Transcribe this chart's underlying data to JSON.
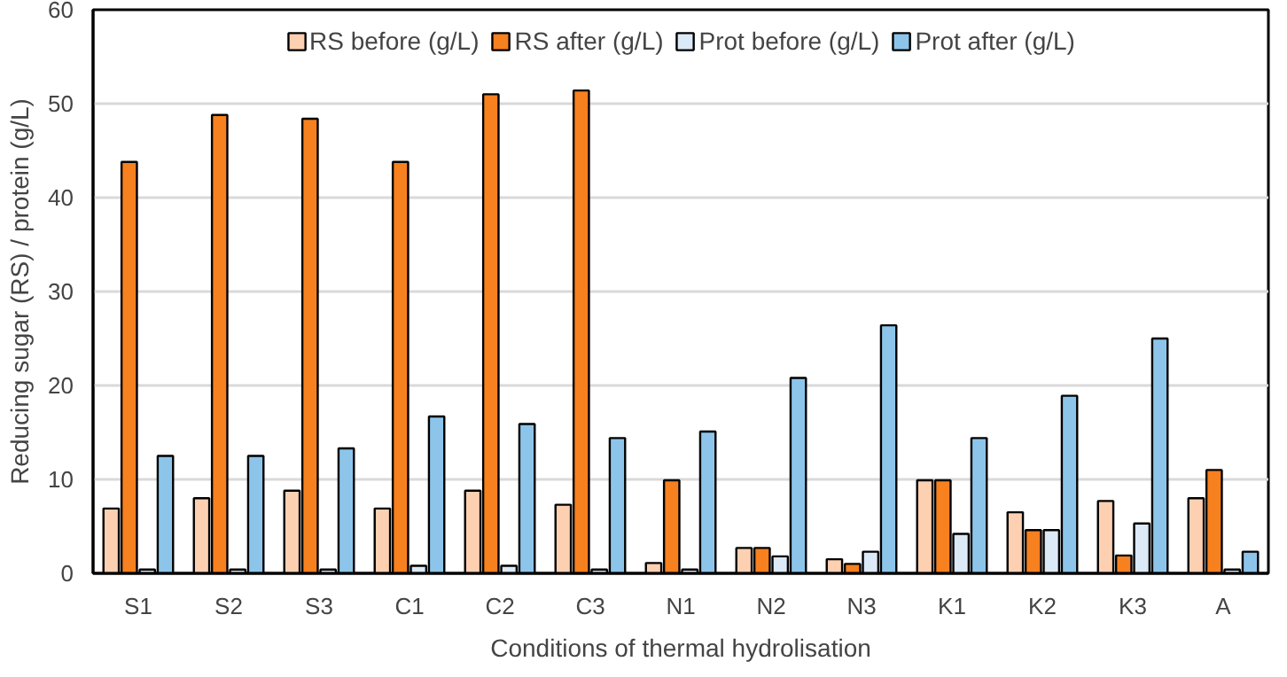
{
  "chart_data": {
    "type": "bar",
    "xlabel": "Conditions of thermal hydrolisation",
    "ylabel": "Reducing sugar (RS) / protein (g/L)",
    "categories": [
      "S1",
      "S2",
      "S3",
      "C1",
      "C2",
      "C3",
      "N1",
      "N2",
      "N3",
      "K1",
      "K2",
      "K3",
      "A"
    ],
    "series": [
      {
        "name": "RS before (g/L)",
        "color": "#fdd0b2",
        "values": [
          6.9,
          8.0,
          8.8,
          6.9,
          8.8,
          7.3,
          1.1,
          2.7,
          1.5,
          9.9,
          6.5,
          7.7,
          8.0
        ]
      },
      {
        "name": "RS after (g/L)",
        "color": "#f7801f",
        "values": [
          43.8,
          48.8,
          48.4,
          43.8,
          51.0,
          51.4,
          9.9,
          2.7,
          1.0,
          9.9,
          4.6,
          1.9,
          11.0
        ]
      },
      {
        "name": "Prot before (g/L)",
        "color": "#dce9f6",
        "values": [
          0.4,
          0.4,
          0.4,
          0.8,
          0.8,
          0.4,
          0.4,
          1.8,
          2.3,
          4.2,
          4.6,
          5.3,
          0.4
        ]
      },
      {
        "name": "Prot after (g/L)",
        "color": "#8dc5ea",
        "values": [
          12.5,
          12.5,
          13.3,
          16.7,
          15.9,
          14.4,
          15.1,
          20.8,
          26.4,
          14.4,
          18.9,
          25.0,
          2.3
        ]
      }
    ],
    "ylim": [
      0,
      60
    ],
    "yticks": [
      0,
      10,
      20,
      30,
      40,
      50,
      60
    ],
    "grid": "y",
    "legend": "top"
  }
}
